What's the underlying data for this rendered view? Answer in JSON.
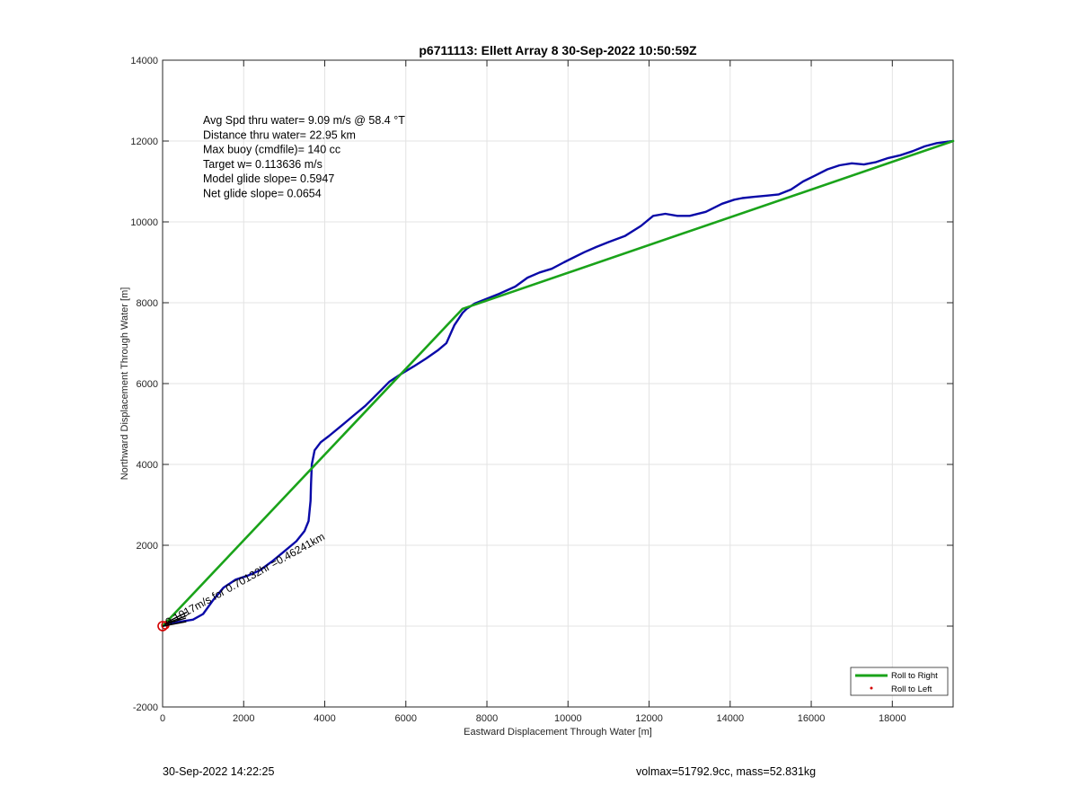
{
  "chart_data": {
    "type": "line",
    "title": "p6711113: Ellett Array 8 30-Sep-2022 10:50:59Z",
    "xlabel": "Eastward Displacement Through Water [m]",
    "ylabel": "Northward Displacement Through Water [m]",
    "xlim": [
      0,
      19500
    ],
    "ylim": [
      -2000,
      14000
    ],
    "xticks": [
      0,
      2000,
      4000,
      6000,
      8000,
      10000,
      12000,
      14000,
      16000,
      18000
    ],
    "yticks": [
      -2000,
      0,
      2000,
      4000,
      6000,
      8000,
      10000,
      12000,
      14000
    ],
    "ytick_labels": [
      "-2000",
      "",
      "2000",
      "4000",
      "6000",
      "8000",
      "10000",
      "12000",
      "14000"
    ],
    "grid": true,
    "legend_position": "bottom-right",
    "annotations": [
      "Avg Spd thru water=  9.09 m/s @  58.4 °T",
      "Distance thru water= 22.95 km",
      "Max buoy (cmdfile)= 140 cc",
      "Target w= 0.113636 m/s",
      "Model glide slope= 0.5947",
      "Net glide slope= 0.0654"
    ],
    "rotated_label": "0.1017m/s for 0.70132hr =0.46241km",
    "series": [
      {
        "name": "Roll to Right",
        "color": "#1aa31a",
        "x": [
          0,
          7400,
          19500
        ],
        "y": [
          0,
          7850,
          12000
        ]
      },
      {
        "name": "Roll to Left",
        "color": "#d40000",
        "x": [],
        "y": []
      },
      {
        "color": "#0a0aa8",
        "x": [
          0,
          250,
          500,
          750,
          1000,
          1250,
          1500,
          1800,
          2100,
          2400,
          2700,
          3000,
          3300,
          3500,
          3600,
          3650,
          3660,
          3680,
          3750,
          3900,
          4100,
          4400,
          4700,
          5000,
          5300,
          5600,
          5900,
          6200,
          6500,
          6800,
          7000,
          7200,
          7400,
          7500,
          7700,
          8000,
          8300,
          8700,
          9000,
          9300,
          9600,
          9900,
          10100,
          10400,
          10700,
          11000,
          11400,
          11800,
          12100,
          12400,
          12700,
          13000,
          13400,
          13800,
          14100,
          14300,
          14600,
          14900,
          15200,
          15500,
          15800,
          16100,
          16400,
          16700,
          17000,
          17300,
          17600,
          17900,
          18200,
          18500,
          18800,
          19100,
          19500
        ],
        "y": [
          0,
          80,
          120,
          160,
          300,
          650,
          950,
          1150,
          1250,
          1380,
          1600,
          1850,
          2100,
          2350,
          2600,
          3100,
          3500,
          4000,
          4350,
          4550,
          4700,
          4950,
          5200,
          5450,
          5750,
          6050,
          6250,
          6430,
          6620,
          6830,
          7000,
          7450,
          7750,
          7850,
          7980,
          8100,
          8220,
          8400,
          8620,
          8750,
          8840,
          9000,
          9100,
          9250,
          9380,
          9500,
          9650,
          9900,
          10150,
          10200,
          10150,
          10150,
          10250,
          10450,
          10550,
          10590,
          10620,
          10650,
          10680,
          10800,
          11000,
          11150,
          11300,
          11400,
          11450,
          11420,
          11480,
          11580,
          11650,
          11750,
          11870,
          11950,
          12000
        ]
      }
    ]
  },
  "footer": {
    "timestamp": "30-Sep-2022 14:22:25",
    "info": "volmax=51792.9cc, mass=52.831kg"
  }
}
